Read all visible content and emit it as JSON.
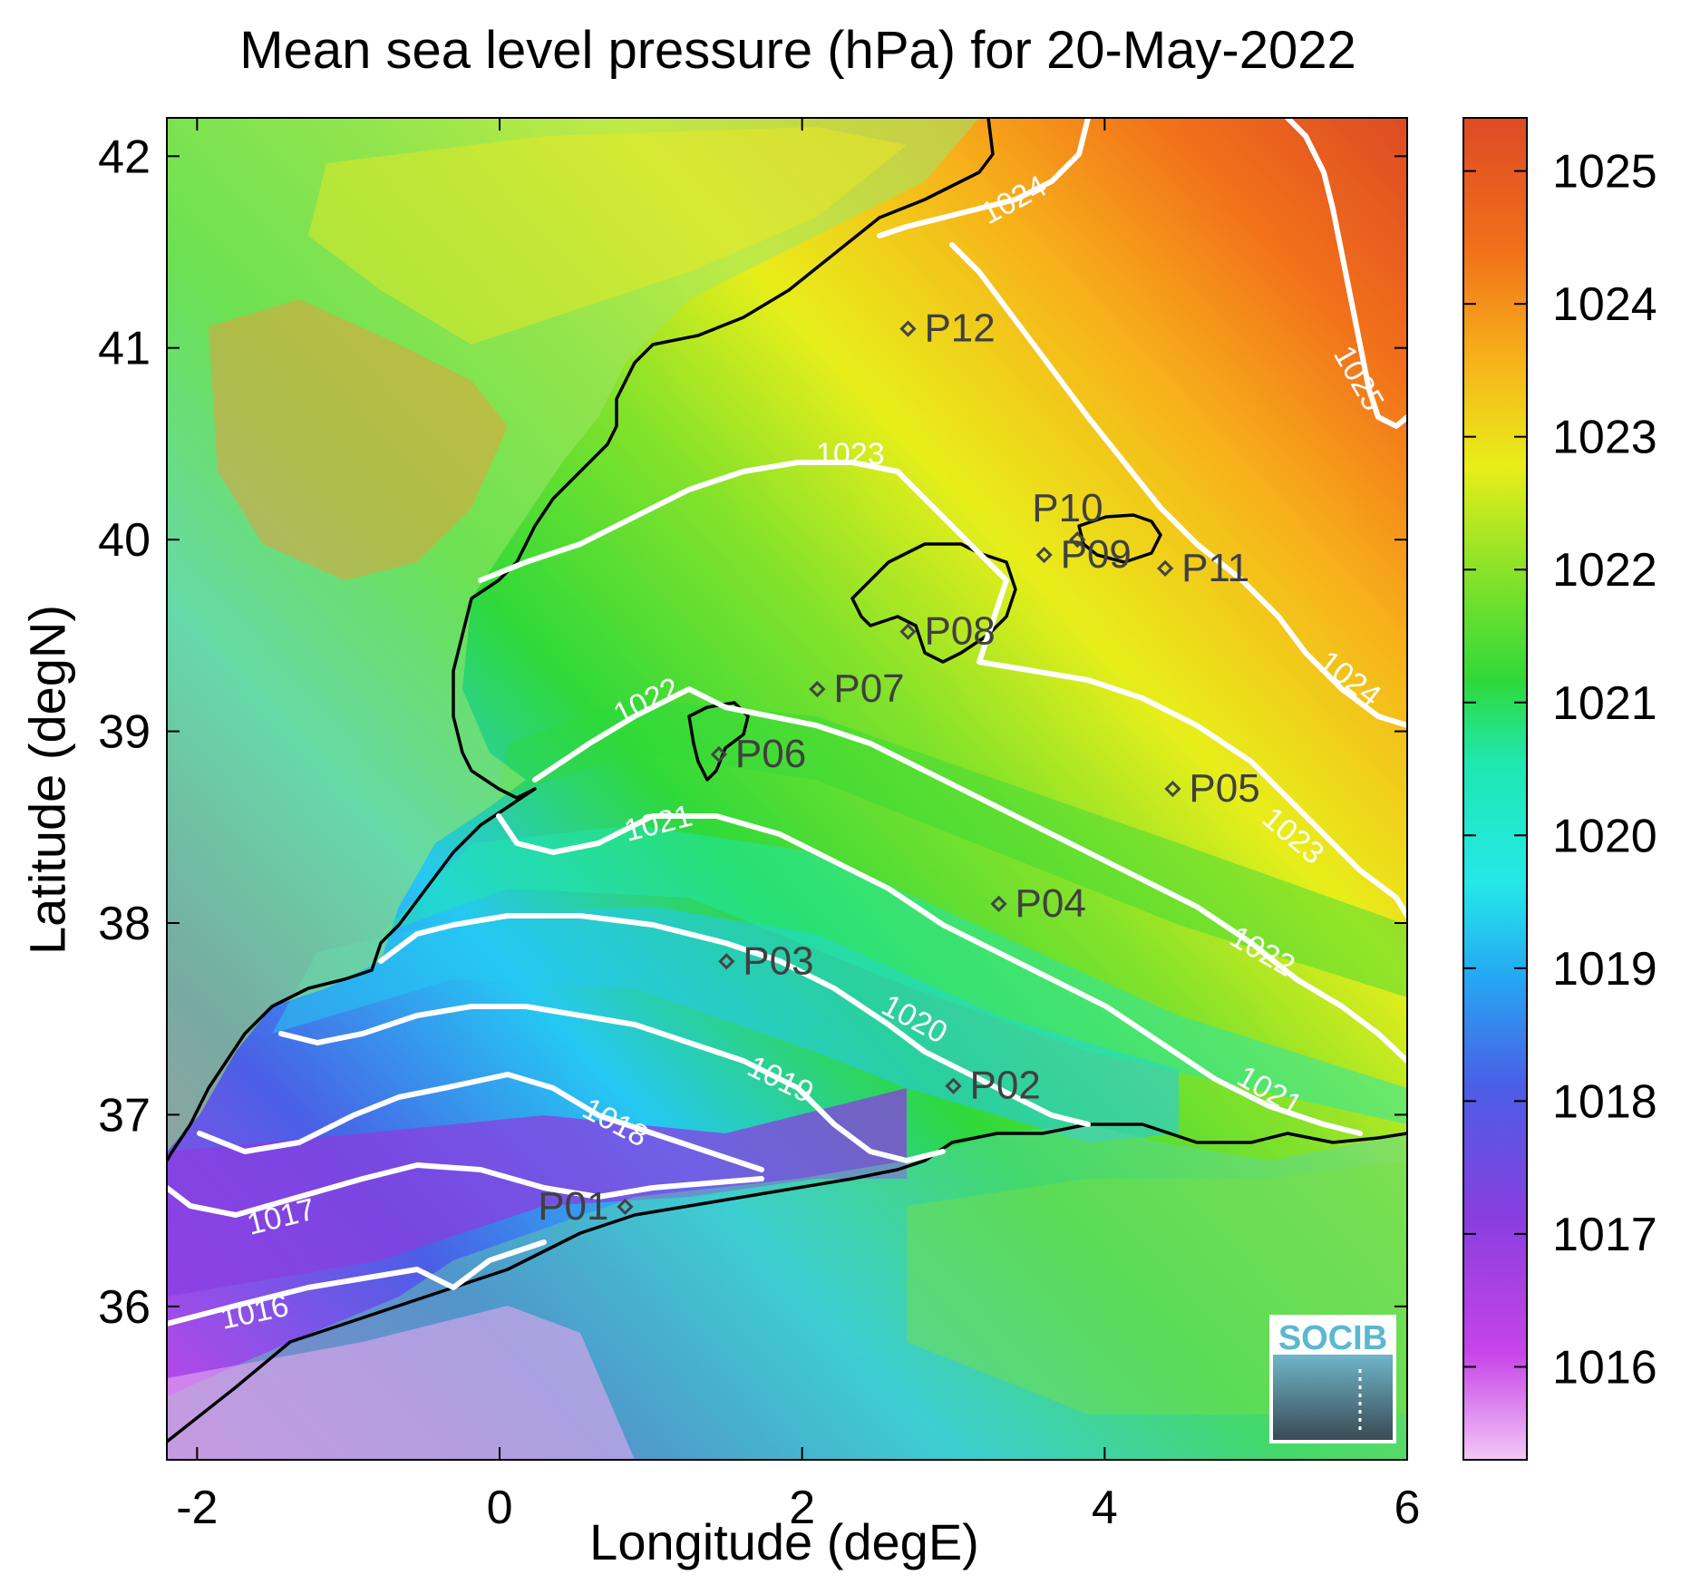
{
  "title": "Mean sea level pressure (hPa) for 20-May-2022",
  "xlabel": "Longitude (degE)",
  "ylabel": "Latitude (degN)",
  "x_ticks": [
    "-2",
    "0",
    "2",
    "4",
    "6"
  ],
  "y_ticks": [
    "42",
    "41",
    "40",
    "39",
    "38",
    "37",
    "36"
  ],
  "colorbar": {
    "ticks": [
      "1025",
      "1024",
      "1023",
      "1022",
      "1021",
      "1020",
      "1019",
      "1018",
      "1017",
      "1016"
    ],
    "range": [
      1015.3,
      1025.4
    ],
    "colors": [
      "#f3c8f5",
      "#c744e8",
      "#8a3ee0",
      "#4a5fe6",
      "#25c8f3",
      "#1fe8b0",
      "#2fd93a",
      "#86e22a",
      "#e8ee1a",
      "#f7b21a",
      "#f2711a",
      "#de4a24"
    ]
  },
  "map": {
    "lon_range": [
      -2.2,
      6.0
    ],
    "lat_range": [
      35.2,
      42.2
    ],
    "contour_levels": [
      "1016",
      "1017",
      "1018",
      "1019",
      "1020",
      "1021",
      "1022",
      "1023",
      "1024",
      "1025"
    ],
    "stations": [
      {
        "id": "P01",
        "lon": 0.83,
        "lat": 36.52
      },
      {
        "id": "P02",
        "lon": 3.0,
        "lat": 37.15
      },
      {
        "id": "P03",
        "lon": 1.5,
        "lat": 37.8
      },
      {
        "id": "P04",
        "lon": 3.3,
        "lat": 38.1
      },
      {
        "id": "P05",
        "lon": 4.45,
        "lat": 38.7
      },
      {
        "id": "P06",
        "lon": 1.45,
        "lat": 38.88
      },
      {
        "id": "P07",
        "lon": 2.1,
        "lat": 39.22
      },
      {
        "id": "P08",
        "lon": 2.7,
        "lat": 39.52
      },
      {
        "id": "P09",
        "lon": 3.6,
        "lat": 39.92
      },
      {
        "id": "P10",
        "lon": 3.82,
        "lat": 40.0
      },
      {
        "id": "P11",
        "lon": 4.4,
        "lat": 39.85
      },
      {
        "id": "P12",
        "lon": 2.7,
        "lat": 41.1
      }
    ],
    "logo_text": "SOCIB"
  }
}
